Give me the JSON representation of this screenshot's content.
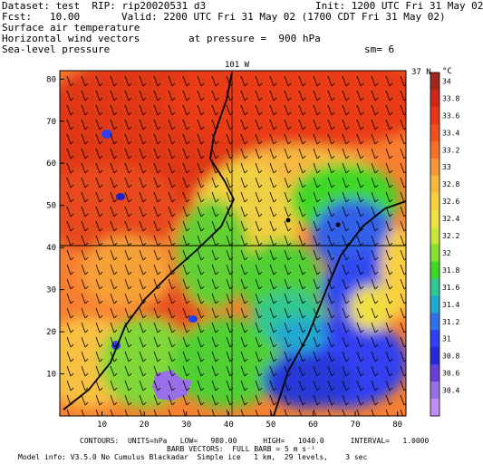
{
  "header": {
    "dataset": "Dataset: test  RIP: rip20020531 d3",
    "init": "Init: 1200 UTC Fri 31 May 02",
    "fcst": "Fcst:   10.00",
    "valid": "Valid: 2200 UTC Fri 31 May 02 (1700 CDT Fri 31 May 02)",
    "field1": "Surface air temperature",
    "field2": "Horizontal wind vectors",
    "field3": "Sea-level pressure",
    "pressure": "at pressure =  900 hPa",
    "sm": "sm= 6"
  },
  "map": {
    "lat_label_top": "101 W",
    "lat_label_right": "37 N",
    "x_ticks": [
      "10",
      "20",
      "30",
      "40",
      "50",
      "60",
      "70",
      "80"
    ],
    "y_ticks": [
      "10",
      "20",
      "30",
      "40",
      "50",
      "60",
      "70",
      "80"
    ]
  },
  "colorbar": {
    "unit": "°C",
    "labels": [
      "34",
      "33.8",
      "33.6",
      "33.4",
      "33.2",
      "33",
      "32.8",
      "32.6",
      "32.4",
      "32.2",
      "32",
      "31.8",
      "31.6",
      "31.4",
      "31.2",
      "31",
      "30.8",
      "30.6",
      "30.4"
    ],
    "colors": [
      "#a0281c",
      "#d02818",
      "#e83818",
      "#f05020",
      "#f87028",
      "#f89838",
      "#f8b840",
      "#f8d040",
      "#f0e040",
      "#c8e838",
      "#88e030",
      "#40d828",
      "#30c890",
      "#20a8d0",
      "#3070e8",
      "#3040f0",
      "#2828d8",
      "#6840d8",
      "#9870e8",
      "#c090f0"
    ]
  },
  "footer": {
    "contours": "CONTOURS:  UNITS=hPa   LOW=   980.00      HIGH=   1040.0      INTERVAL=   1.0000",
    "barbs": "BARB VECTORS:  FULL BARB = 5 m s⁻¹",
    "model": "Model info: V3.5.0 No Cumulus Blackadar  Simple ice   1 km,  29 levels,    3 sec"
  }
}
